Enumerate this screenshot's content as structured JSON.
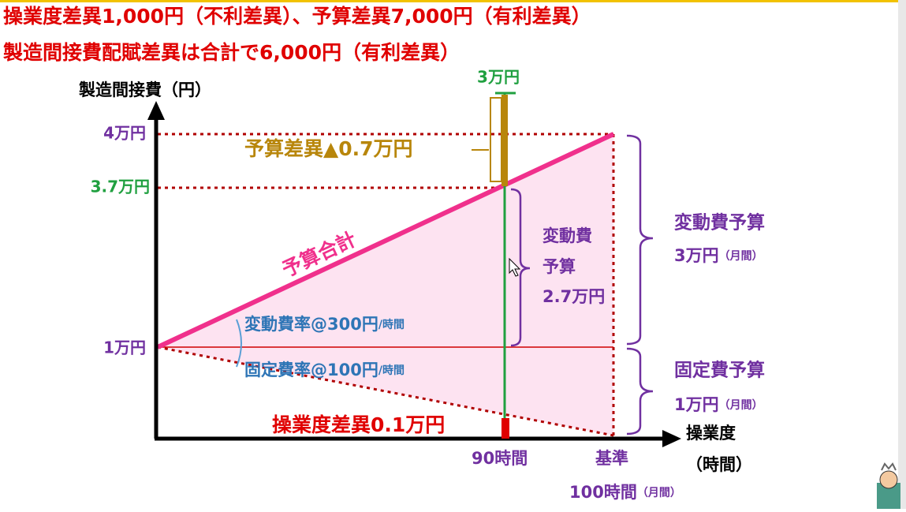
{
  "header": {
    "line1": "操業度差異1,000円（不利差異）、予算差異7,000円（有利差異）",
    "line2": "製造間接費配賦差異は合計で6,000円（有利差異）"
  },
  "axes": {
    "y_label": "製造間接費（円）",
    "x_label": "操業度",
    "x_unit": "（時間）"
  },
  "y_labels": {
    "top": "4万円",
    "mid": "3.7万円",
    "base": "1万円"
  },
  "top_label": "3万円",
  "budget_variance": "予算差異▲0.7万円",
  "budget_total": "予算合計",
  "variable_rate": {
    "main": "変動費率@300円",
    "unit": "/時間"
  },
  "fixed_rate": {
    "main": "固定費率@100円",
    "unit": "/時間"
  },
  "volume_variance": "操業度差異0.1万円",
  "x_labels": {
    "actual": "90時間",
    "standard": "基準",
    "standard_hours": "100時間",
    "standard_unit": "（月間）"
  },
  "inner_variable": [
    "変動費",
    "予算",
    "2.7万円"
  ],
  "variable_budget": {
    "title": "変動費予算",
    "amount": "3万円",
    "unit": "（月間）"
  },
  "fixed_budget": {
    "title": "固定費予算",
    "amount": "1万円",
    "unit": "（月間）"
  }
}
